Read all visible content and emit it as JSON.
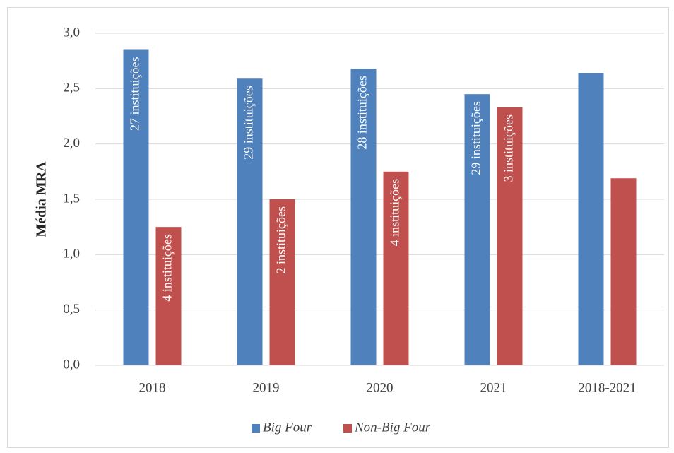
{
  "chart_data": {
    "type": "bar",
    "y_label": "Média MRA",
    "categories": [
      "2018",
      "2019",
      "2020",
      "2021",
      "2018-2021"
    ],
    "series": [
      {
        "name": "Big Four",
        "color": "#4f81bd",
        "values": [
          2.85,
          2.59,
          2.68,
          2.45,
          2.64
        ],
        "bar_labels": [
          "27 instituições",
          "29 instituições",
          "28 instituições",
          "29 instituições",
          null
        ]
      },
      {
        "name": "Non-Big Four",
        "color": "#c0504d",
        "values": [
          1.25,
          1.5,
          1.75,
          2.33,
          1.69
        ],
        "bar_labels": [
          "4 instituições",
          "2 instituições",
          "4 instituições",
          "3 instituições",
          null
        ]
      }
    ],
    "ylim": [
      0,
      3
    ],
    "yticks": [
      {
        "value": 0,
        "label": "0,0"
      },
      {
        "value": 0.5,
        "label": "0,5"
      },
      {
        "value": 1,
        "label": "1,0"
      },
      {
        "value": 1.5,
        "label": "1,5"
      },
      {
        "value": 2,
        "label": "2,0"
      },
      {
        "value": 2.5,
        "label": "2,5"
      },
      {
        "value": 3,
        "label": "3,0"
      }
    ],
    "grid": true,
    "legend": "bottom"
  }
}
